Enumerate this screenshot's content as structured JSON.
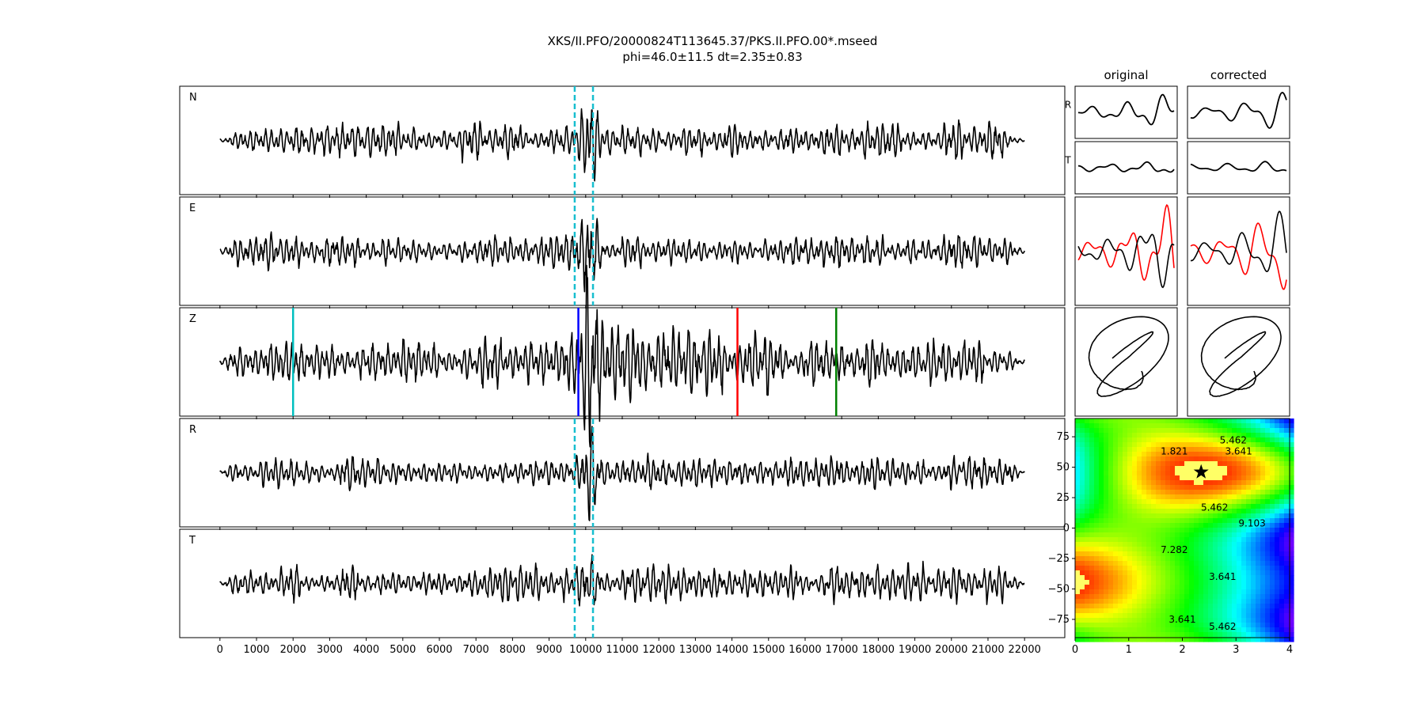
{
  "figure": {
    "title_line1": "XKS/II.PFO/20000824T113645.37/PKS.II.PFO.00*.mseed",
    "title_line2": "phi=46.0±11.5 dt=2.35±0.83"
  },
  "chart_data": [
    {
      "type": "line",
      "name": "seismogram-traces",
      "xlim": [
        -1100,
        23100
      ],
      "x_ticks": [
        0,
        1000,
        2000,
        3000,
        4000,
        5000,
        6000,
        7000,
        8000,
        9000,
        10000,
        11000,
        12000,
        13000,
        14000,
        15000,
        16000,
        17000,
        18000,
        19000,
        20000,
        21000,
        22000
      ],
      "x_tick_labels": [
        "0",
        "1000",
        "2000",
        "3000",
        "4000",
        "5000",
        "6000",
        "7000",
        "8000",
        "9000",
        "10000",
        "11000",
        "12000",
        "13000",
        "14000",
        "15000",
        "16000",
        "17000",
        "18000",
        "19000",
        "20000",
        "21000",
        "22000"
      ],
      "trace_range": [
        0,
        22000
      ],
      "line_color": "#000000",
      "panels": [
        {
          "label": "N",
          "seed": 11,
          "amp": 0.34,
          "burst_amp": 0.8,
          "window": true
        },
        {
          "label": "E",
          "seed": 23,
          "amp": 0.32,
          "burst_amp": 0.85,
          "window": true
        },
        {
          "label": "Z",
          "seed": 37,
          "amp": 0.45,
          "burst_amp": 1.0,
          "window": false
        },
        {
          "label": "R",
          "seed": 41,
          "amp": 0.3,
          "burst_amp": 0.85,
          "window": true
        },
        {
          "label": "T",
          "seed": 53,
          "amp": 0.34,
          "burst_amp": 0.4,
          "window": true
        }
      ],
      "analysis_window": {
        "start": 9700,
        "end": 10200,
        "color": "#17becf",
        "style": "dashed"
      },
      "phase_markers": [
        {
          "x": 2000,
          "color": "#00bfbf"
        },
        {
          "x": 9800,
          "color": "#0000ff"
        },
        {
          "x": 14150,
          "color": "#ff0000"
        },
        {
          "x": 16850,
          "color": "#008000"
        }
      ]
    },
    {
      "type": "line",
      "name": "particle-motion-panels",
      "column_titles": [
        "original",
        "corrected"
      ],
      "row_labels": [
        "R",
        "T"
      ],
      "series_colors": [
        "#000000",
        "#ff0000"
      ]
    },
    {
      "type": "heatmap",
      "name": "error-surface",
      "xlim": [
        0,
        4
      ],
      "ylim": [
        -90,
        90
      ],
      "x_ticks": [
        0,
        1,
        2,
        3,
        4
      ],
      "x_tick_labels": [
        "0",
        "1",
        "2",
        "3",
        "4"
      ],
      "y_ticks": [
        75,
        50,
        25,
        0,
        -25,
        -50,
        -75
      ],
      "y_tick_labels": [
        "75",
        "50",
        "25",
        "0",
        "−25",
        "−50",
        "−75"
      ],
      "colormap": "rainbow",
      "contour_levels": [
        1.821,
        3.641,
        5.462,
        7.282,
        9.103
      ],
      "contour_labels": [
        {
          "text": "1.821",
          "x": 1.85,
          "y": 63
        },
        {
          "text": "3.641",
          "x": 3.05,
          "y": 63
        },
        {
          "text": "5.462",
          "x": 2.95,
          "y": 72
        },
        {
          "text": "5.462",
          "x": 2.6,
          "y": 17
        },
        {
          "text": "9.103",
          "x": 3.3,
          "y": 4
        },
        {
          "text": "7.282",
          "x": 1.85,
          "y": -18
        },
        {
          "text": "3.641",
          "x": 2.75,
          "y": -40
        },
        {
          "text": "3.641",
          "x": 2.0,
          "y": -75
        },
        {
          "text": "5.462",
          "x": 2.75,
          "y": -81
        }
      ],
      "best_fit": {
        "dt": 2.35,
        "phi": 46.0,
        "marker": "star"
      }
    }
  ]
}
